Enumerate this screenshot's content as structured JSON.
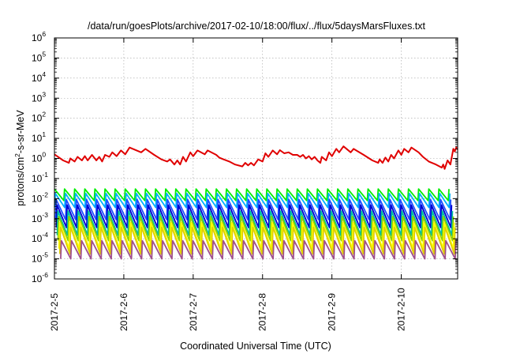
{
  "chart_data": {
    "type": "line",
    "title": "/data/run/goesPlots/archive/2017-02-10/18:00/flux/../flux/5daysMarsFluxes.txt",
    "xlabel": "Coordinated Universal Time (UTC)",
    "ylabel_parts": [
      "protons/cm",
      "2",
      "-s-sr-MeV"
    ],
    "y_scale": "log",
    "ylim": [
      1e-06,
      1000000.0
    ],
    "y_ticks": [
      {
        "base": "10",
        "exp": "-6"
      },
      {
        "base": "10",
        "exp": "-5"
      },
      {
        "base": "10",
        "exp": "-4"
      },
      {
        "base": "10",
        "exp": "-3"
      },
      {
        "base": "10",
        "exp": "-2"
      },
      {
        "base": "10",
        "exp": "-1"
      },
      {
        "base": "10",
        "exp": "0"
      },
      {
        "base": "10",
        "exp": "1"
      },
      {
        "base": "10",
        "exp": "2"
      },
      {
        "base": "10",
        "exp": "3"
      },
      {
        "base": "10",
        "exp": "4"
      },
      {
        "base": "10",
        "exp": "5"
      },
      {
        "base": "10",
        "exp": "6"
      }
    ],
    "xlim": [
      "2017-02-05T00:00",
      "2017-02-10T19:30"
    ],
    "x_ticks": [
      "2017-2-5",
      "2017-2-6",
      "2017-2-7",
      "2017-2-8",
      "2017-2-9",
      "2017-2-10"
    ],
    "grid": true,
    "legend": "none",
    "series": [
      {
        "color": "#e00000",
        "points": [
          [
            "2017-02-05T00:00",
            1.6
          ],
          [
            "2017-02-05T03:00",
            0.8
          ],
          [
            "2017-02-05T05:00",
            0.6
          ],
          [
            "2017-02-05T05:30",
            1.0
          ],
          [
            "2017-02-05T07:00",
            0.7
          ],
          [
            "2017-02-05T08:00",
            1.2
          ],
          [
            "2017-02-05T09:30",
            0.8
          ],
          [
            "2017-02-05T10:30",
            1.3
          ],
          [
            "2017-02-05T11:30",
            0.8
          ],
          [
            "2017-02-05T13:00",
            1.5
          ],
          [
            "2017-02-05T14:30",
            0.8
          ],
          [
            "2017-02-05T15:30",
            1.2
          ],
          [
            "2017-02-05T16:30",
            0.7
          ],
          [
            "2017-02-05T17:30",
            1.5
          ],
          [
            "2017-02-05T19:00",
            1.2
          ],
          [
            "2017-02-05T20:00",
            2.0
          ],
          [
            "2017-02-05T21:30",
            1.3
          ],
          [
            "2017-02-05T23:00",
            2.5
          ],
          [
            "2017-02-06T00:30",
            1.6
          ],
          [
            "2017-02-06T02:00",
            3.5
          ],
          [
            "2017-02-06T06:00",
            2.0
          ],
          [
            "2017-02-06T07:30",
            3.0
          ],
          [
            "2017-02-06T10:30",
            1.5
          ],
          [
            "2017-02-06T13:00",
            0.9
          ],
          [
            "2017-02-06T15:00",
            0.7
          ],
          [
            "2017-02-06T16:00",
            0.9
          ],
          [
            "2017-02-06T17:30",
            0.5
          ],
          [
            "2017-02-06T18:30",
            0.8
          ],
          [
            "2017-02-06T19:30",
            0.5
          ],
          [
            "2017-02-06T20:30",
            1.2
          ],
          [
            "2017-02-06T21:30",
            0.7
          ],
          [
            "2017-02-06T23:00",
            2.0
          ],
          [
            "2017-02-07T00:00",
            1.3
          ],
          [
            "2017-02-07T01:30",
            2.5
          ],
          [
            "2017-02-07T04:00",
            1.6
          ],
          [
            "2017-02-07T05:00",
            2.5
          ],
          [
            "2017-02-07T08:00",
            1.5
          ],
          [
            "2017-02-07T09:00",
            1.1
          ],
          [
            "2017-02-07T10:30",
            0.9
          ],
          [
            "2017-02-07T12:30",
            0.7
          ],
          [
            "2017-02-07T14:30",
            0.5
          ],
          [
            "2017-02-07T17:00",
            0.4
          ],
          [
            "2017-02-07T18:00",
            0.6
          ],
          [
            "2017-02-07T19:00",
            0.45
          ],
          [
            "2017-02-07T20:00",
            0.6
          ],
          [
            "2017-02-07T21:00",
            0.45
          ],
          [
            "2017-02-07T22:30",
            0.9
          ],
          [
            "2017-02-08T00:00",
            0.7
          ],
          [
            "2017-02-08T01:00",
            1.8
          ],
          [
            "2017-02-08T02:00",
            1.2
          ],
          [
            "2017-02-08T03:30",
            2.5
          ],
          [
            "2017-02-08T05:00",
            1.6
          ],
          [
            "2017-02-08T06:00",
            2.6
          ],
          [
            "2017-02-08T07:30",
            1.8
          ],
          [
            "2017-02-08T09:00",
            2.0
          ],
          [
            "2017-02-08T10:30",
            1.5
          ],
          [
            "2017-02-08T12:00",
            1.5
          ],
          [
            "2017-02-08T13:00",
            1.2
          ],
          [
            "2017-02-08T14:00",
            1.5
          ],
          [
            "2017-02-08T15:00",
            1.0
          ],
          [
            "2017-02-08T16:00",
            1.3
          ],
          [
            "2017-02-08T17:00",
            0.9
          ],
          [
            "2017-02-08T18:00",
            1.2
          ],
          [
            "2017-02-08T19:00",
            0.8
          ],
          [
            "2017-02-08T20:00",
            0.6
          ],
          [
            "2017-02-08T20:30",
            1.2
          ],
          [
            "2017-02-08T22:00",
            0.8
          ],
          [
            "2017-02-08T23:00",
            2.0
          ],
          [
            "2017-02-09T00:00",
            1.3
          ],
          [
            "2017-02-09T01:30",
            3.0
          ],
          [
            "2017-02-09T02:30",
            2.0
          ],
          [
            "2017-02-09T04:00",
            4.0
          ],
          [
            "2017-02-09T06:30",
            2.0
          ],
          [
            "2017-02-09T07:30",
            3.0
          ],
          [
            "2017-02-09T11:00",
            1.5
          ],
          [
            "2017-02-09T14:00",
            0.8
          ],
          [
            "2017-02-09T16:00",
            0.6
          ],
          [
            "2017-02-09T16:30",
            0.9
          ],
          [
            "2017-02-09T17:30",
            0.6
          ],
          [
            "2017-02-09T18:30",
            1.1
          ],
          [
            "2017-02-09T19:30",
            0.7
          ],
          [
            "2017-02-09T20:30",
            1.5
          ],
          [
            "2017-02-09T21:30",
            1.0
          ],
          [
            "2017-02-09T23:00",
            2.5
          ],
          [
            "2017-02-10T00:00",
            1.5
          ],
          [
            "2017-02-10T01:00",
            3.0
          ],
          [
            "2017-02-10T02:30",
            2.0
          ],
          [
            "2017-02-10T03:30",
            3.5
          ],
          [
            "2017-02-10T06:00",
            2.0
          ],
          [
            "2017-02-10T07:30",
            1.2
          ],
          [
            "2017-02-10T09:30",
            0.7
          ],
          [
            "2017-02-10T12:00",
            0.5
          ],
          [
            "2017-02-10T14:00",
            0.35
          ],
          [
            "2017-02-10T14:30",
            0.5
          ],
          [
            "2017-02-10T15:00",
            0.3
          ],
          [
            "2017-02-10T16:00",
            0.8
          ],
          [
            "2017-02-10T17:00",
            0.5
          ],
          [
            "2017-02-10T18:00",
            3.0
          ],
          [
            "2017-02-10T18:30",
            2.2
          ],
          [
            "2017-02-10T19:00",
            3.5
          ],
          [
            "2017-02-10T19:30",
            2.8
          ]
        ]
      },
      {
        "color": "#00ee00",
        "sawtooth": {
          "base": 0.02,
          "peak_ratio": 1.5,
          "trough_ratio": 0.4,
          "period_hours": 3.5,
          "phase_hours": 0.0
        }
      },
      {
        "color": "#00b0ff",
        "sawtooth": {
          "base": 0.012,
          "peak_ratio": 1.5,
          "trough_ratio": 0.3,
          "period_hours": 3.5,
          "phase_hours": 0.3
        }
      },
      {
        "color": "#2050ff",
        "sawtooth": {
          "base": 0.006,
          "peak_ratio": 1.5,
          "trough_ratio": 0.15,
          "period_hours": 3.5,
          "phase_hours": 0.6
        }
      },
      {
        "color": "#0000d0",
        "sawtooth": {
          "base": 0.003,
          "peak_ratio": 1.6,
          "trough_ratio": 0.12,
          "period_hours": 3.5,
          "phase_hours": 0.9
        }
      },
      {
        "color": "#00c0a0",
        "sawtooth": {
          "base": 0.0015,
          "peak_ratio": 1.6,
          "trough_ratio": 0.1,
          "period_hours": 3.5,
          "phase_hours": 1.2
        }
      },
      {
        "color": "#90d000",
        "sawtooth": {
          "base": 0.0008,
          "peak_ratio": 1.6,
          "trough_ratio": 0.1,
          "period_hours": 3.5,
          "phase_hours": 1.5
        }
      },
      {
        "color": "#ffff00",
        "sawtooth": {
          "base": 0.0004,
          "peak_ratio": 1.6,
          "trough_ratio": 0.08,
          "period_hours": 3.5,
          "phase_hours": 1.8
        }
      },
      {
        "color": "#e0d000",
        "sawtooth": {
          "base": 0.00025,
          "peak_ratio": 1.5,
          "trough_ratio": 0.07,
          "period_hours": 3.5,
          "phase_hours": 2.1
        }
      },
      {
        "color": "#a0508c",
        "sawtooth": {
          "base": 5e-05,
          "peak_ratio": 1.6,
          "trough_ratio": 0.2,
          "period_hours": 3.5,
          "phase_hours": 2.4
        }
      }
    ]
  }
}
